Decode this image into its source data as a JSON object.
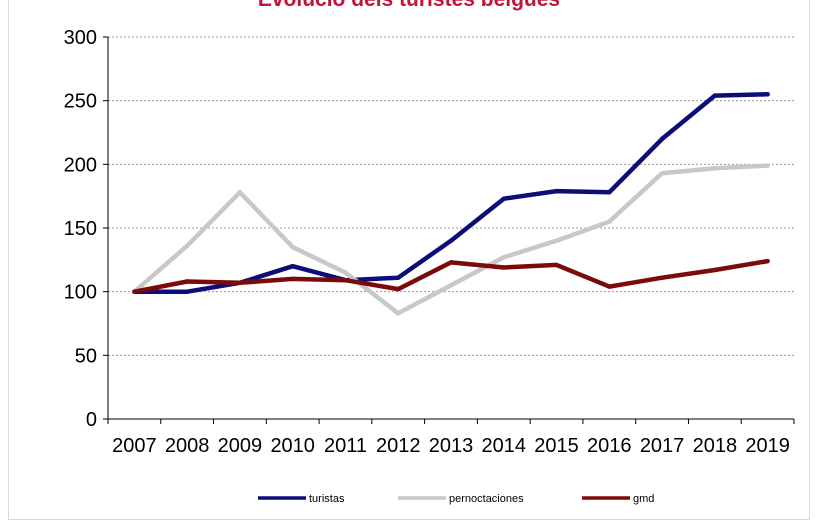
{
  "chart_data": {
    "type": "line",
    "title": "Evolució dels turistes belgues",
    "xlabel": "",
    "ylabel": "",
    "categories": [
      "2007",
      "2008",
      "2009",
      "2010",
      "2011",
      "2012",
      "2013",
      "2014",
      "2015",
      "2016",
      "2017",
      "2018",
      "2019"
    ],
    "ylim": [
      0,
      300
    ],
    "yticks": [
      0,
      50,
      100,
      150,
      200,
      250,
      300
    ],
    "grid": true,
    "legend_position": "bottom",
    "series": [
      {
        "name": "turistas",
        "color": "#0d0d7a",
        "values": [
          100,
          100,
          107,
          120,
          109,
          111,
          140,
          173,
          179,
          178,
          220,
          254,
          255
        ]
      },
      {
        "name": "pernoctaciones",
        "color": "#c8c8c8",
        "values": [
          100,
          136,
          178,
          135,
          115,
          83,
          105,
          127,
          140,
          155,
          193,
          197,
          199
        ]
      },
      {
        "name": "gmd",
        "color": "#7b0a0a",
        "values": [
          100,
          108,
          107,
          110,
          109,
          102,
          123,
          119,
          121,
          104,
          111,
          117,
          124
        ]
      }
    ]
  }
}
